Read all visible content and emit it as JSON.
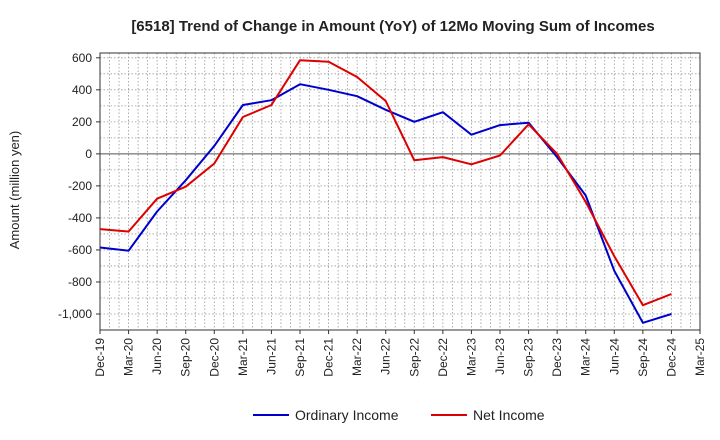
{
  "chart_data": {
    "type": "line",
    "title": "[6518]  Trend of Change in Amount (YoY) of 12Mo Moving Sum of Incomes",
    "xlabel": "",
    "ylabel": "Amount (million yen)",
    "ylim": [
      -1100,
      630
    ],
    "yticks": [
      600,
      400,
      200,
      0,
      -200,
      -400,
      -600,
      -800,
      -1000
    ],
    "ytick_labels": [
      "600",
      "400",
      "200",
      "0",
      "-200",
      "-400",
      "-600",
      "-800",
      "-1,000"
    ],
    "categories": [
      "Dec-19",
      "Mar-20",
      "Jun-20",
      "Sep-20",
      "Dec-20",
      "Mar-21",
      "Jun-21",
      "Sep-21",
      "Dec-21",
      "Mar-22",
      "Jun-22",
      "Sep-22",
      "Dec-22",
      "Mar-23",
      "Jun-23",
      "Sep-23",
      "Dec-23",
      "Mar-24",
      "Jun-24",
      "Sep-24",
      "Dec-24",
      "Mar-25"
    ],
    "grid": true,
    "legend_position": "bottom",
    "series": [
      {
        "name": "Ordinary Income",
        "color": "#0000cc",
        "values": [
          -585,
          -605,
          -360,
          -165,
          50,
          305,
          335,
          435,
          400,
          360,
          275,
          200,
          260,
          120,
          180,
          195,
          -20,
          -260,
          -730,
          -1055,
          -1000,
          null
        ]
      },
      {
        "name": "Net Income",
        "color": "#dd0000",
        "values": [
          -470,
          -485,
          -280,
          -205,
          -60,
          230,
          305,
          585,
          575,
          480,
          330,
          -40,
          -20,
          -65,
          -10,
          185,
          0,
          -300,
          -640,
          -945,
          -875,
          null
        ]
      }
    ]
  }
}
